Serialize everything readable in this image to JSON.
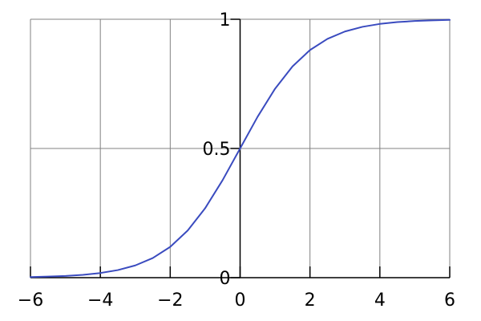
{
  "chart_data": {
    "type": "line",
    "xlim": [
      -6,
      6
    ],
    "ylim": [
      0,
      1
    ],
    "x_ticks": [
      -6,
      -4,
      -2,
      0,
      2,
      4,
      6
    ],
    "y_ticks": [
      0,
      0.5,
      1
    ],
    "x_tick_labels": [
      "−6",
      "−4",
      "−2",
      "0",
      "2",
      "4",
      "6"
    ],
    "y_tick_labels": [
      "0",
      "0.5",
      "1"
    ],
    "grid": true,
    "series": [
      {
        "x": [
          -6,
          -5.5,
          -5,
          -4.5,
          -4,
          -3.5,
          -3,
          -2.5,
          -2,
          -1.5,
          -1,
          -0.5,
          0,
          0.5,
          1,
          1.5,
          2,
          2.5,
          3,
          3.5,
          4,
          4.5,
          5,
          5.5,
          6
        ],
        "y": [
          0.0025,
          0.0041,
          0.0067,
          0.011,
          0.018,
          0.0293,
          0.0474,
          0.0759,
          0.1192,
          0.1824,
          0.2689,
          0.3775,
          0.5,
          0.6225,
          0.7311,
          0.8176,
          0.8808,
          0.9241,
          0.9526,
          0.9707,
          0.982,
          0.989,
          0.9933,
          0.9959,
          0.9975
        ]
      }
    ]
  },
  "colors": {
    "curve": "#3a4bbf",
    "grid": "#808080",
    "axis": "#000000"
  }
}
